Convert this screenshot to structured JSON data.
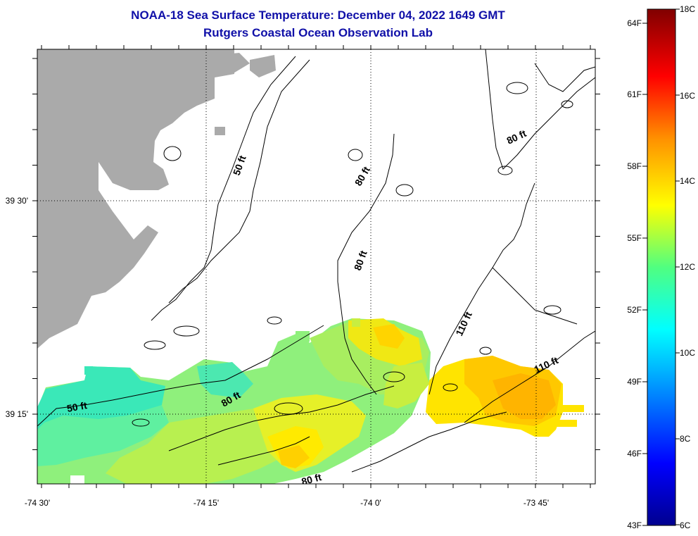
{
  "header": {
    "title": "NOAA-18 Sea Surface Temperature:  December 04, 2022 1649 GMT",
    "subtitle": "Rutgers Coastal Ocean Observation Lab"
  },
  "map": {
    "lon_labels": [
      "-74 30'",
      "-74 15'",
      "-74 0'",
      "-73 45'"
    ],
    "lat_labels": [
      "39 30'",
      "39 15'"
    ],
    "depth_contours": [
      "50 ft",
      "80 ft",
      "80 ft",
      "80 ft",
      "110 ft",
      "110 ft",
      "50 ft",
      "80 ft",
      "80 ft"
    ],
    "land_color": "#aaaaaa"
  },
  "colorbar": {
    "fahrenheit_labels": [
      "64F",
      "61F",
      "58F",
      "55F",
      "52F",
      "49F",
      "46F",
      "43F"
    ],
    "celsius_labels": [
      "18C",
      "16C",
      "14C",
      "12C",
      "10C",
      "8C",
      "6C"
    ]
  }
}
